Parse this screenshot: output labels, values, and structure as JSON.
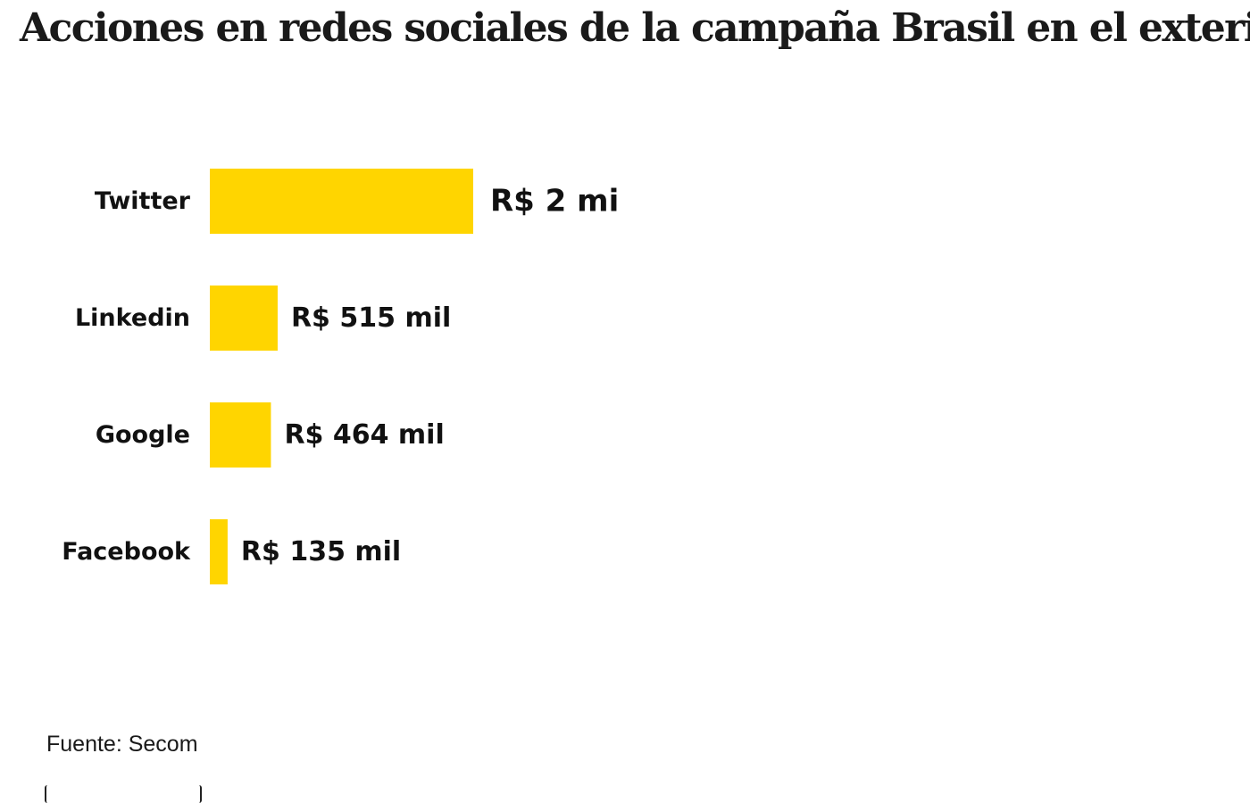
{
  "title": "Acciones en redes sociales de la campaña Brasil en el exterior",
  "source": "Fuente: Secom",
  "chart_data": {
    "type": "bar",
    "orientation": "horizontal",
    "title": "Acciones en redes sociales de la campaña Brasil en el exterior",
    "xlabel": "",
    "ylabel": "",
    "unit": "R$",
    "categories": [
      "Twitter",
      "Linkedin",
      "Google",
      "Facebook"
    ],
    "values": [
      2000000,
      515000,
      464000,
      135000
    ],
    "value_labels": [
      "R$ 2 mi",
      "R$ 515 mil",
      "R$ 464 mil",
      "R$ 135 mil"
    ],
    "grid": false,
    "legend": "none",
    "bar_color": "#FFD500"
  }
}
